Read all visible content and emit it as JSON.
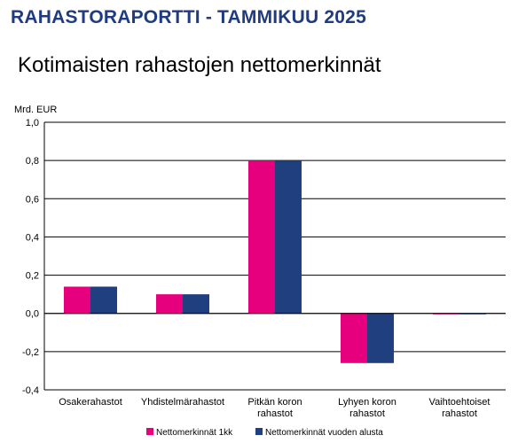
{
  "report": {
    "title": "RAHASTORAPORTTI - TAMMIKUU 2025"
  },
  "chart_data": {
    "type": "bar",
    "title": "Kotimaisten rahastojen nettomerkinnät",
    "ylabel": "Mrd. EUR",
    "xlabel": "",
    "ylim": [
      -0.4,
      1.0
    ],
    "yticks": [
      "1,0",
      "0,8",
      "0,6",
      "0,4",
      "0,2",
      "0,0",
      "-0,2",
      "-0,4"
    ],
    "ytick_values": [
      1.0,
      0.8,
      0.6,
      0.4,
      0.2,
      0.0,
      -0.2,
      -0.4
    ],
    "grid": true,
    "legend_position": "bottom",
    "categories": [
      [
        "Osakerahastot"
      ],
      [
        "Yhdistelmärahastot"
      ],
      [
        "Pitkän koron",
        "rahastot"
      ],
      [
        "Lyhyen koron",
        "rahastot"
      ],
      [
        "Vaihtoehtoiset",
        "rahastot"
      ]
    ],
    "series": [
      {
        "name": "Nettomerkinnät 1kk",
        "color": "#e6007e",
        "values": [
          0.14,
          0.1,
          0.8,
          -0.26,
          -0.005
        ]
      },
      {
        "name": "Nettomerkinnät vuoden alusta",
        "color": "#1f3f7f",
        "values": [
          0.14,
          0.1,
          0.8,
          -0.26,
          -0.005
        ]
      }
    ]
  }
}
